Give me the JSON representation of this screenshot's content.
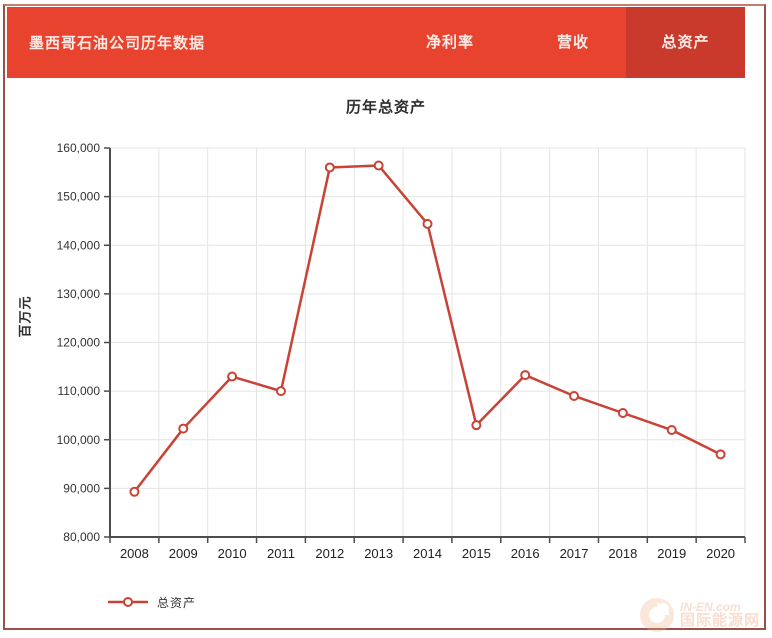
{
  "header": {
    "title": "墨西哥石油公司历年数据",
    "tabs": [
      {
        "label": "净利率",
        "active": false
      },
      {
        "label": "营收",
        "active": false
      },
      {
        "label": "总资产",
        "active": true
      }
    ]
  },
  "chart_data": {
    "type": "line",
    "title": "历年总资产",
    "xlabel": "",
    "ylabel": "百万元",
    "categories": [
      "2008",
      "2009",
      "2010",
      "2011",
      "2012",
      "2013",
      "2014",
      "2015",
      "2016",
      "2017",
      "2018",
      "2019",
      "2020"
    ],
    "series": [
      {
        "name": "总资产",
        "color": "#c84335",
        "values": [
          89300,
          102300,
          113000,
          110000,
          156000,
          156400,
          144400,
          103000,
          113300,
          109000,
          105500,
          102000,
          97000
        ]
      }
    ],
    "ylim": [
      80000,
      160000
    ],
    "ytick_step": 10000,
    "grid": true,
    "legend_position": "bottom-left",
    "legend": [
      "总资产"
    ]
  },
  "watermark": {
    "line1": "IN-EN.com",
    "line2": "国际能源网"
  },
  "colors": {
    "header_red": "#e8432f",
    "active_tab_red": "#c9392c",
    "series_red": "#c84335",
    "frame_border": "#9c5047"
  }
}
